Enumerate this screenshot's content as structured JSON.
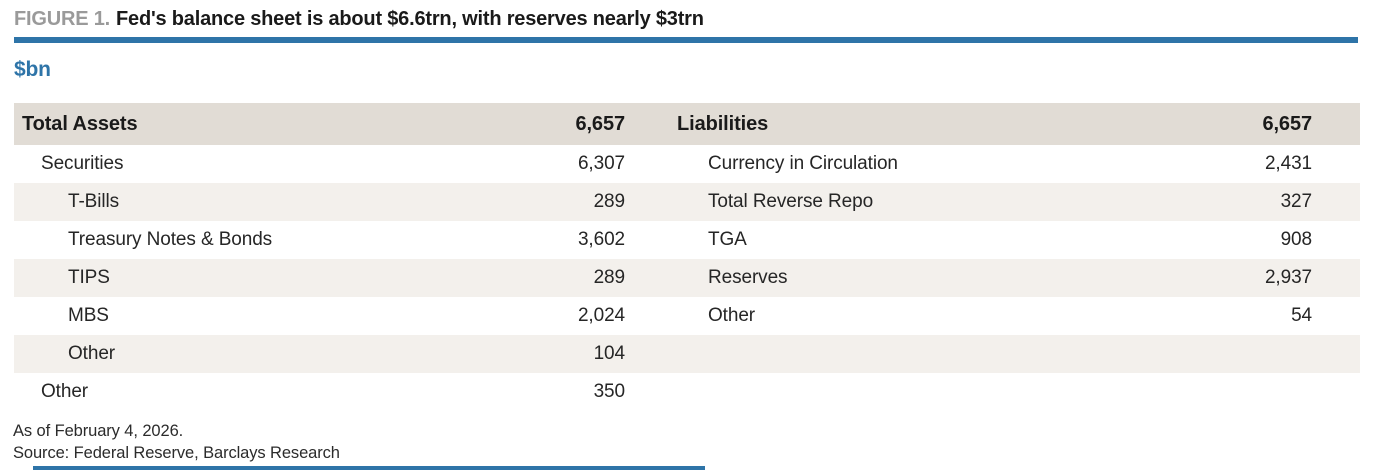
{
  "figure": {
    "label": "FIGURE 1.",
    "title": "Fed's balance sheet is about $6.6trn, with reserves nearly $3trn",
    "units": "$bn"
  },
  "table": {
    "rows": [
      {
        "header": true,
        "left_label": "Total Assets",
        "left_value": "6,657",
        "left_indent": 0,
        "right_label": "Liabilities",
        "right_value": "6,657",
        "right_indent": 0
      },
      {
        "header": false,
        "left_label": "Securities",
        "left_value": "6,307",
        "left_indent": 1,
        "right_label": "Currency in Circulation",
        "right_value": "2,431",
        "right_indent": 1
      },
      {
        "header": false,
        "left_label": "T-Bills",
        "left_value": "289",
        "left_indent": 2,
        "right_label": "Total Reverse Repo",
        "right_value": "327",
        "right_indent": 1
      },
      {
        "header": false,
        "left_label": "Treasury Notes & Bonds",
        "left_value": "3,602",
        "left_indent": 2,
        "right_label": "TGA",
        "right_value": "908",
        "right_indent": 1
      },
      {
        "header": false,
        "left_label": "TIPS",
        "left_value": "289",
        "left_indent": 2,
        "right_label": "Reserves",
        "right_value": "2,937",
        "right_indent": 1
      },
      {
        "header": false,
        "left_label": "MBS",
        "left_value": "2,024",
        "left_indent": 2,
        "right_label": "Other",
        "right_value": "54",
        "right_indent": 1
      },
      {
        "header": false,
        "left_label": "Other",
        "left_value": "104",
        "left_indent": 2,
        "right_label": "",
        "right_value": "",
        "right_indent": 1
      },
      {
        "header": false,
        "left_label": "Other",
        "left_value": "350",
        "left_indent": 1,
        "right_label": "",
        "right_value": "",
        "right_indent": 1
      }
    ]
  },
  "footer": {
    "as_of": "As of February 4, 2026.",
    "source": "Source: Federal Reserve, Barclays Research"
  },
  "colors": {
    "accent_blue": "#2e74a8",
    "header_bg": "#e1dcd5",
    "stripe_bg": "#f3f0ec",
    "figure_label_gray": "#9a9a9a",
    "text_dark": "#262626"
  },
  "chart_data": {
    "type": "table",
    "title": "FIGURE 1. Fed's balance sheet is about $6.6trn, with reserves nearly $3trn",
    "units": "$bn",
    "assets": {
      "Total Assets": 6657,
      "Securities": 6307,
      "T-Bills": 289,
      "Treasury Notes & Bonds": 3602,
      "TIPS": 289,
      "MBS": 2024,
      "Other (Securities)": 104,
      "Other": 350
    },
    "liabilities": {
      "Liabilities": 6657,
      "Currency in Circulation": 2431,
      "Total Reverse Repo": 327,
      "TGA": 908,
      "Reserves": 2937,
      "Other": 54
    }
  }
}
